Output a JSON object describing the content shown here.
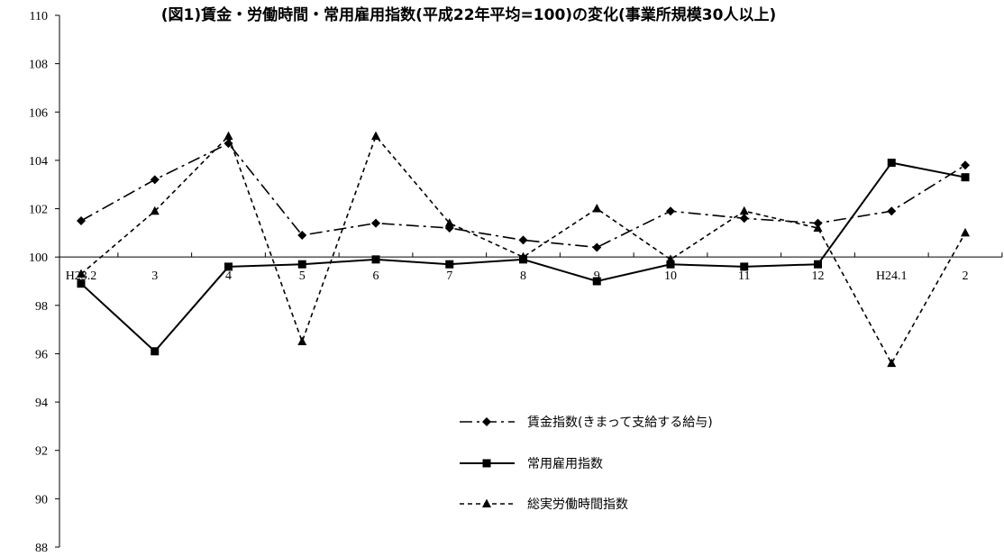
{
  "chart_data": {
    "type": "line",
    "title": "(図1)賃金・労働時間・常用雇用指数(平成22年平均=100)の変化(事業所規模30人以上)",
    "categories": [
      "H23.2",
      "3",
      "4",
      "5",
      "6",
      "7",
      "8",
      "9",
      "10",
      "11",
      "12",
      "H24.1",
      "2"
    ],
    "y_ticks": [
      "110",
      "108",
      "106",
      "104",
      "102",
      "100",
      "98",
      "96",
      "94",
      "92",
      "90",
      "88"
    ],
    "ylim": [
      88,
      110
    ],
    "y_step": 2,
    "x_axis_crosses_at": 100,
    "grid": false,
    "legend_position": "center-right",
    "series": [
      {
        "name": "賃金指数(きまって支給する給与)",
        "values": [
          101.5,
          103.2,
          104.7,
          100.9,
          101.4,
          101.2,
          100.7,
          100.4,
          101.9,
          101.6,
          101.4,
          101.9,
          103.8
        ],
        "marker": "diamond",
        "line_style": "dash-dot",
        "color": "#000000"
      },
      {
        "name": "常用雇用指数",
        "values": [
          98.9,
          96.1,
          99.6,
          99.7,
          99.9,
          99.7,
          99.9,
          99.0,
          99.7,
          99.6,
          99.7,
          103.9,
          103.3
        ],
        "marker": "square",
        "line_style": "solid",
        "color": "#000000"
      },
      {
        "name": "総実労働時間指数",
        "values": [
          99.3,
          101.9,
          105.0,
          96.5,
          105.0,
          101.4,
          100.0,
          102.0,
          99.9,
          101.9,
          101.2,
          95.6,
          101.0
        ],
        "marker": "triangle",
        "line_style": "dashed",
        "color": "#000000"
      }
    ]
  }
}
